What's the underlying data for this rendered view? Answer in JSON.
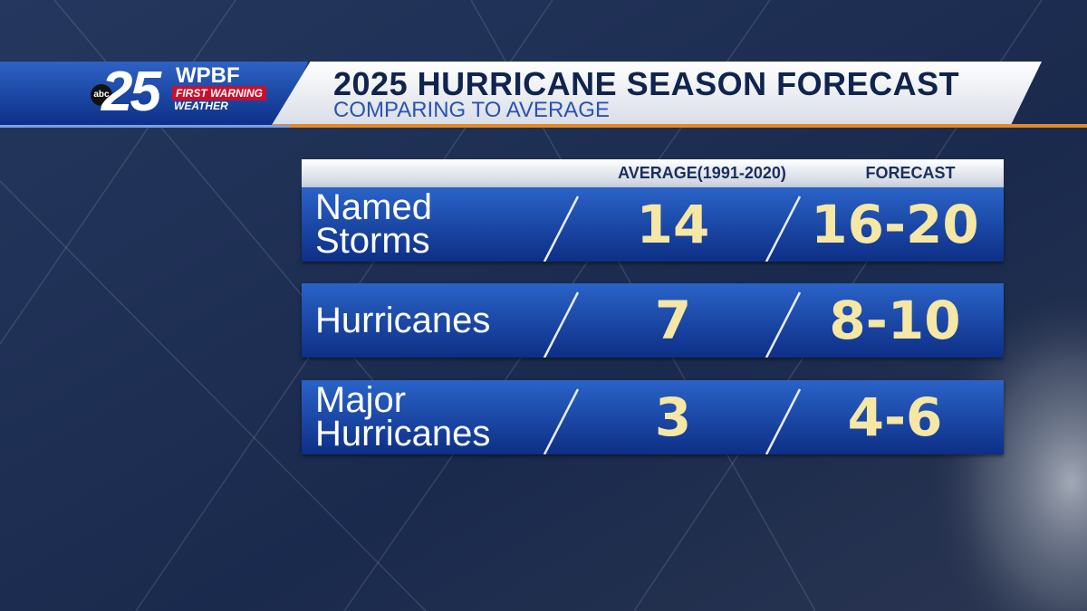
{
  "logo": {
    "network": "abc",
    "channel": "25",
    "station": "WPBF",
    "tagline": "FIRST WARNING",
    "brand": "WEATHER"
  },
  "header": {
    "title": "2025 HURRICANE SEASON FORECAST",
    "subtitle": "COMPARING TO AVERAGE"
  },
  "table": {
    "columns": [
      "AVERAGE(1991-2020)",
      "FORECAST"
    ],
    "rows": [
      [
        "Named Storms",
        "14",
        "16-20"
      ],
      [
        "Hurricanes",
        "7",
        "8-10"
      ],
      [
        "Major Hurricanes",
        "3",
        "4-6"
      ]
    ]
  }
}
